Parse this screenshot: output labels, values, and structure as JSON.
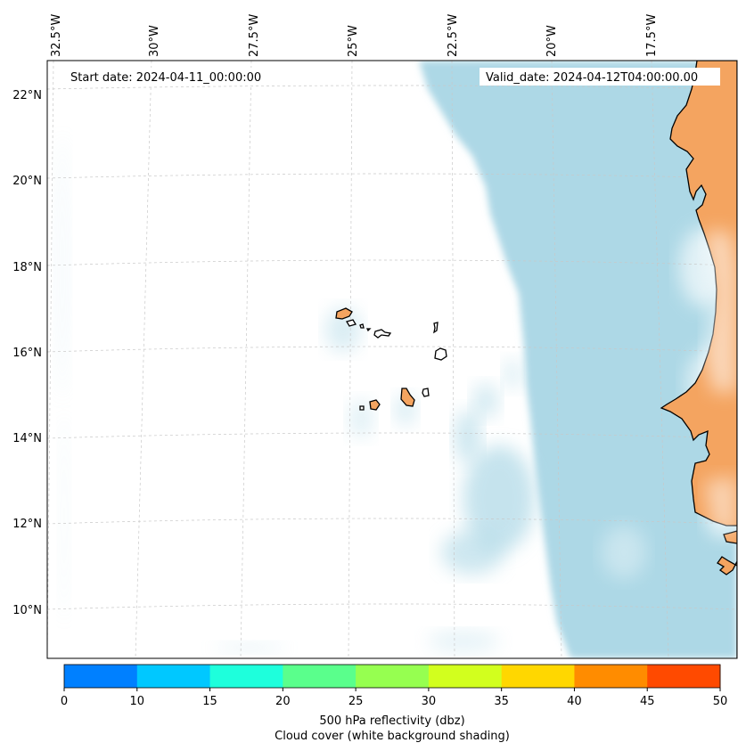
{
  "header": {
    "start_date": "Start date: 2024-04-11_00:00:00",
    "valid_date": "Valid_date: 2024-04-12T04:00:00.00"
  },
  "longitude_labels": [
    "32.5°W",
    "30°W",
    "27.5°W",
    "25°W",
    "22.5°W",
    "20°W",
    "17.5°W"
  ],
  "latitude_labels": [
    "22°N",
    "20°N",
    "18°N",
    "16°N",
    "14°N",
    "12°N",
    "10°N"
  ],
  "colorbar": {
    "ticks": [
      "0",
      "10",
      "15",
      "20",
      "25",
      "30",
      "35",
      "40",
      "45",
      "50"
    ],
    "colors": [
      "#0080ff",
      "#00c8ff",
      "#1effdc",
      "#5aff8c",
      "#96ff50",
      "#d2ff1e",
      "#ffd700",
      "#ff8c00",
      "#ff4a00"
    ],
    "caption_line1": "500 hPa reflectivity (dbz)",
    "caption_line2": "Cloud cover (white background shading)"
  },
  "colors": {
    "land": "#f4a460",
    "cloud_cover": "#add8e6",
    "coastline": "#000000",
    "gridline": "#c8c8c8"
  }
}
